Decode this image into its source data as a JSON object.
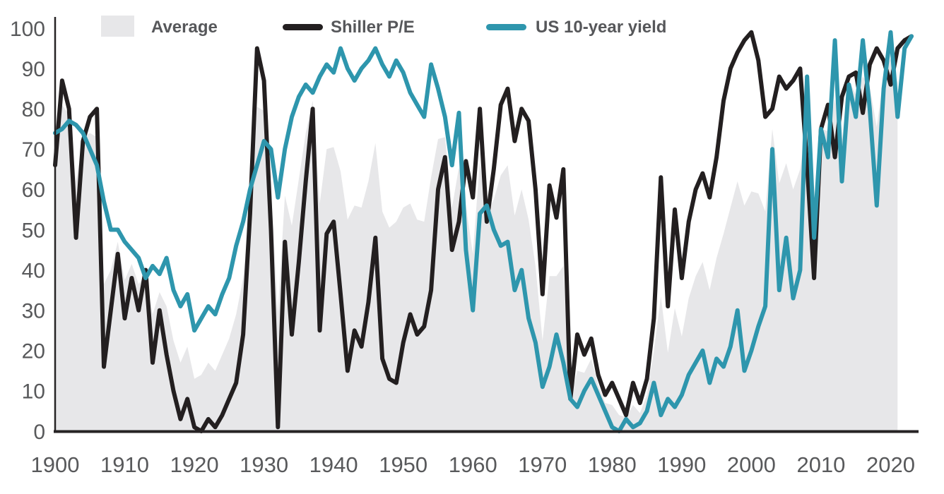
{
  "chart": {
    "title": "",
    "kind": "percentile line chart with average area",
    "legend": [
      {
        "label": "Average",
        "marker": "area-swatch"
      },
      {
        "label": "Shiller P/E",
        "marker": "line"
      },
      {
        "label": "US 10-year yield",
        "marker": "line"
      }
    ],
    "colors": {
      "background": "#ffffff",
      "axis": "#262324",
      "tick_text": "#58595b",
      "legend_text": "#56575a",
      "average_fill": "#e7e7e9",
      "shiller_line": "#231f20",
      "yield_line": "#2e96ad"
    }
  },
  "chart_data": {
    "type": "line",
    "title": "",
    "xlabel": "",
    "ylabel": "",
    "ylim": [
      0,
      100
    ],
    "grid": false,
    "legend_position": "top",
    "y_ticks": [
      0,
      10,
      20,
      30,
      40,
      50,
      60,
      70,
      80,
      90,
      100
    ],
    "x_ticks": [
      1900,
      1910,
      1920,
      1930,
      1940,
      1950,
      1960,
      1970,
      1980,
      1990,
      2000,
      2010,
      2020
    ],
    "x_start": 1900,
    "x_end": 2023,
    "x_step": 1,
    "average_area": {
      "name": "Average",
      "definition": "mean of Shiller P/E percentile and US 10-year yield percentile",
      "end_year": 2021
    },
    "series": [
      {
        "name": "Shiller P/E",
        "values": [
          66,
          87,
          80,
          48,
          72,
          78,
          80,
          16,
          30,
          44,
          28,
          38,
          30,
          40,
          17,
          30,
          19,
          10,
          3,
          8,
          1,
          0,
          3,
          1,
          4,
          8,
          12,
          24,
          54,
          95,
          87,
          50,
          1,
          47,
          24,
          42,
          62,
          80,
          25,
          49,
          52,
          34,
          15,
          25,
          21,
          32,
          48,
          18,
          13,
          12,
          22,
          29,
          24,
          26,
          35,
          60,
          68,
          45,
          52,
          67,
          58,
          80,
          52,
          65,
          81,
          85,
          72,
          80,
          77,
          60,
          34,
          61,
          53,
          65,
          8,
          24,
          19,
          23,
          14,
          9,
          12,
          8,
          4,
          12,
          7,
          13,
          28,
          63,
          31,
          55,
          38,
          52,
          60,
          64,
          58,
          68,
          82,
          90,
          94,
          97,
          99,
          92,
          78,
          80,
          88,
          85,
          87,
          90,
          66,
          38,
          75,
          81,
          68,
          83,
          88,
          89,
          79,
          91,
          95,
          92,
          86,
          95,
          97,
          98
        ]
      },
      {
        "name": "US 10-year yield",
        "values": [
          74,
          75,
          77,
          76,
          74,
          70,
          66,
          57,
          50,
          50,
          47,
          45,
          43,
          38,
          41,
          39,
          43,
          35,
          31,
          34,
          25,
          28,
          31,
          29,
          34,
          38,
          46,
          52,
          60,
          66,
          72,
          70,
          58,
          70,
          78,
          83,
          86,
          84,
          88,
          91,
          89,
          95,
          90,
          87,
          90,
          92,
          95,
          91,
          88,
          92,
          89,
          84,
          81,
          78,
          91,
          85,
          78,
          66,
          79,
          45,
          30,
          54,
          56,
          50,
          46,
          47,
          35,
          40,
          28,
          22,
          11,
          16,
          24,
          17,
          8,
          6,
          10,
          13,
          9,
          5,
          1,
          0,
          3,
          1,
          2,
          5,
          12,
          4,
          8,
          6,
          9,
          14,
          17,
          20,
          12,
          18,
          16,
          21,
          30,
          15,
          20,
          26,
          31,
          70,
          35,
          48,
          33,
          40,
          88,
          48,
          75,
          68,
          97,
          62,
          86,
          78,
          97,
          80,
          56,
          85,
          99,
          78,
          95,
          98
        ]
      }
    ]
  }
}
